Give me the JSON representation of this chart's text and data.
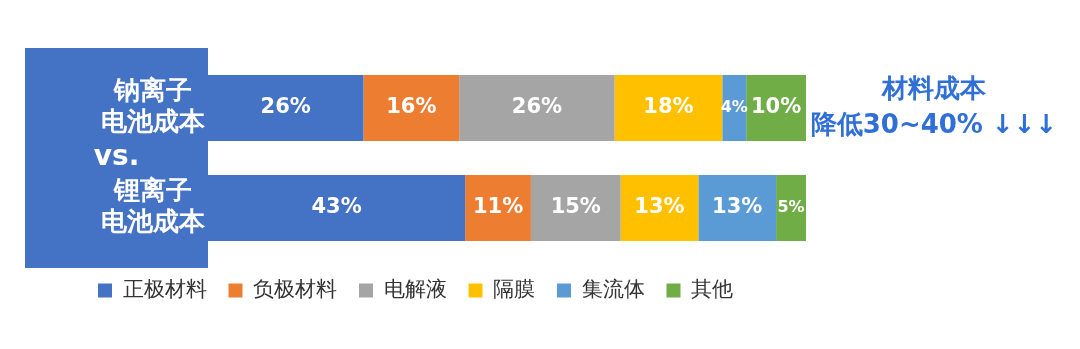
{
  "chart_data": {
    "type": "bar",
    "orientation": "horizontal",
    "stacked": true,
    "categories": [
      "钠离子电池成本",
      "锂离子电池成本"
    ],
    "series": [
      {
        "name": "正极材料",
        "color": "#4472c4",
        "values": [
          26,
          43
        ],
        "value_labels": [
          "26%",
          "43%"
        ]
      },
      {
        "name": "负极材料",
        "color": "#ed7d31",
        "values": [
          16,
          11
        ],
        "value_labels": [
          "16%",
          "11%"
        ]
      },
      {
        "name": "电解液",
        "color": "#a5a5a5",
        "values": [
          26,
          15
        ],
        "value_labels": [
          "26%",
          "15%"
        ]
      },
      {
        "name": "隔膜",
        "color": "#ffc000",
        "values": [
          18,
          13
        ],
        "value_labels": [
          "18%",
          "13%"
        ]
      },
      {
        "name": "集流体",
        "color": "#5b9bd5",
        "values": [
          4,
          13
        ],
        "value_labels": [
          "4%",
          "13%"
        ]
      },
      {
        "name": "其他",
        "color": "#70ad47",
        "values": [
          10,
          5
        ],
        "value_labels": [
          "10%",
          "5%"
        ]
      }
    ],
    "annotations": [
      "vs.",
      "材料成本",
      "降低30~40% ↓↓↓"
    ],
    "legend": "bottom",
    "grid": false,
    "tick_labels": "y"
  }
}
